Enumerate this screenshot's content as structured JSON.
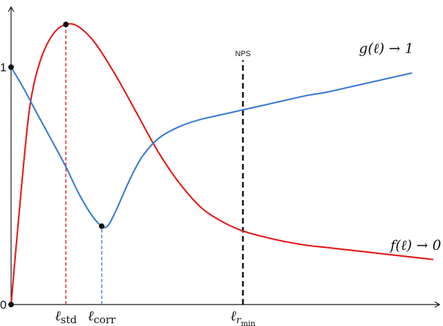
{
  "chart_data": {
    "type": "line",
    "title": "",
    "xlabel": "",
    "ylabel": "",
    "xlim": [
      0,
      10
    ],
    "ylim": [
      0,
      1.2
    ],
    "y_tick_labels": [
      {
        "value": 1,
        "label": "1"
      },
      {
        "value": 0,
        "label": "0"
      }
    ],
    "grid": false,
    "legend": "none",
    "series": [
      {
        "label": "f(ℓ) → 0",
        "label_anchor": [
          9.6,
          0.23
        ],
        "color": "#e41a1c",
        "points": [
          [
            0,
            0.0
          ],
          [
            0.25,
            0.5
          ],
          [
            0.45,
            0.84
          ],
          [
            0.7,
            1.03
          ],
          [
            1.0,
            1.14
          ],
          [
            1.3,
            1.18
          ],
          [
            1.6,
            1.17
          ],
          [
            2.0,
            1.1
          ],
          [
            2.5,
            0.96
          ],
          [
            3.0,
            0.8
          ],
          [
            3.5,
            0.64
          ],
          [
            4.0,
            0.51
          ],
          [
            4.5,
            0.41
          ],
          [
            5.0,
            0.35
          ],
          [
            5.5,
            0.31
          ],
          [
            6.0,
            0.285
          ],
          [
            6.5,
            0.265
          ],
          [
            7.0,
            0.25
          ],
          [
            7.5,
            0.24
          ],
          [
            8.0,
            0.23
          ],
          [
            8.5,
            0.22
          ],
          [
            9.0,
            0.21
          ],
          [
            9.5,
            0.2
          ],
          [
            10.0,
            0.19
          ]
        ]
      },
      {
        "label": "g(ℓ) → 1",
        "label_anchor": [
          8.9,
          1.06
        ],
        "color": "#3a7bd5",
        "points": [
          [
            0,
            1.0
          ],
          [
            0.3,
            0.91
          ],
          [
            0.6,
            0.81
          ],
          [
            1.0,
            0.68
          ],
          [
            1.3,
            0.58
          ],
          [
            1.6,
            0.47
          ],
          [
            1.9,
            0.38
          ],
          [
            2.15,
            0.33
          ],
          [
            2.3,
            0.333
          ],
          [
            2.5,
            0.4
          ],
          [
            2.8,
            0.52
          ],
          [
            3.1,
            0.62
          ],
          [
            3.5,
            0.7
          ],
          [
            4.0,
            0.75
          ],
          [
            4.5,
            0.78
          ],
          [
            5.0,
            0.8
          ],
          [
            5.5,
            0.82
          ],
          [
            6.0,
            0.84
          ],
          [
            6.5,
            0.86
          ],
          [
            7.0,
            0.88
          ],
          [
            7.5,
            0.895
          ],
          [
            8.0,
            0.915
          ],
          [
            8.5,
            0.935
          ],
          [
            9.0,
            0.955
          ],
          [
            9.5,
            0.975
          ]
        ]
      }
    ],
    "markers": [
      {
        "x": 0,
        "y": 0
      },
      {
        "x": 0,
        "y": 1
      },
      {
        "x": 1.3,
        "y": 1.18
      },
      {
        "x": 2.15,
        "y": 0.33
      }
    ],
    "vlines": [
      {
        "x": 1.3,
        "y_top": 1.18,
        "color": "#e41a1c",
        "style": "dashed",
        "width": "thin",
        "label": "ℓstd",
        "top_label": ""
      },
      {
        "x": 2.15,
        "y_top": 0.33,
        "color": "#3a7bd5",
        "style": "dashed",
        "width": "thin",
        "label": "ℓcorr",
        "top_label": ""
      },
      {
        "x": 5.5,
        "y_top": 1.0,
        "color": "#111111",
        "style": "dashed",
        "width": "thick",
        "label": "ℓrmin",
        "top_label": "NPS"
      }
    ]
  }
}
